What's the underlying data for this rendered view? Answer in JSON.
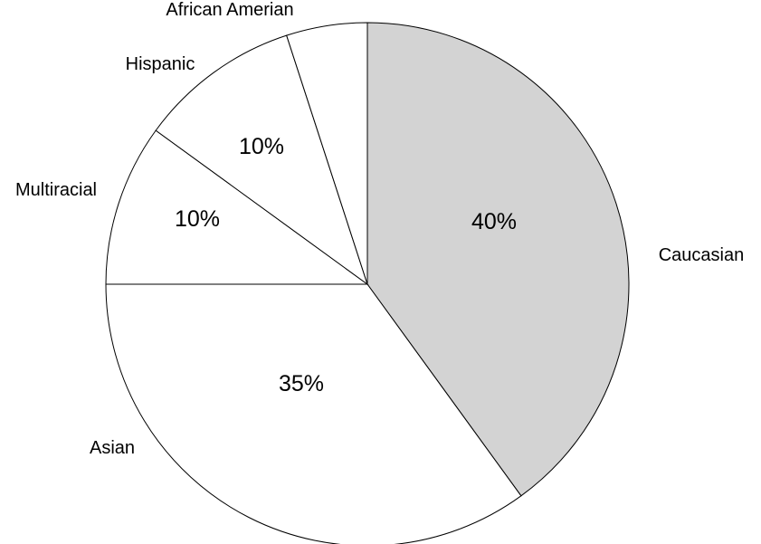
{
  "chart_data": {
    "type": "pie",
    "categories": [
      "Caucasian",
      "Asian",
      "Multiracial",
      "Hispanic",
      "African Amerian"
    ],
    "values": [
      40,
      35,
      10,
      10,
      5
    ],
    "value_labels": [
      "40%",
      "35%",
      "10%",
      "10%",
      ""
    ],
    "colors": [
      "#d3d3d3",
      "#ffffff",
      "#ffffff",
      "#ffffff",
      "#ffffff"
    ],
    "title": "",
    "legend": "none"
  }
}
